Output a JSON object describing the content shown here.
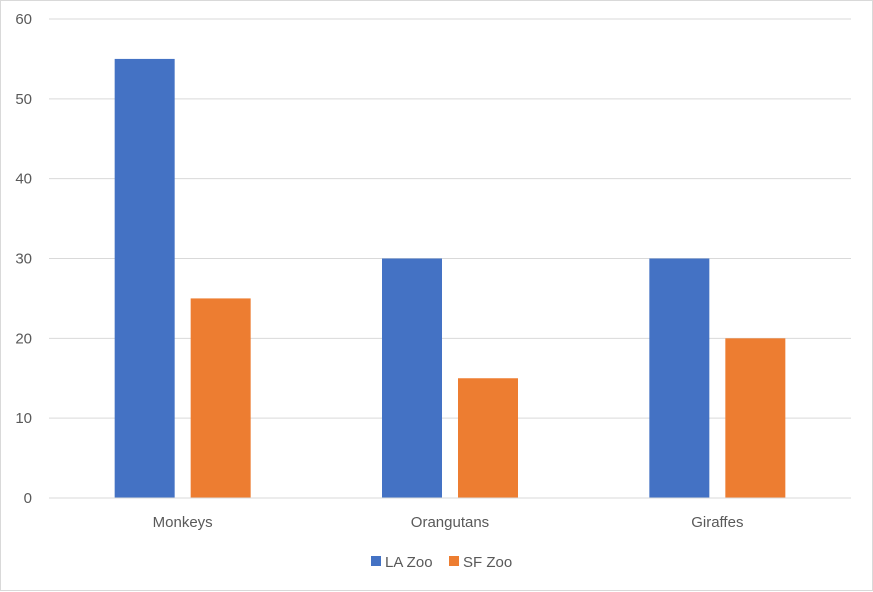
{
  "chart_data": {
    "type": "bar",
    "title": "",
    "xlabel": "",
    "ylabel": "",
    "categories": [
      "Monkeys",
      "Orangutans",
      "Giraffes"
    ],
    "series": [
      {
        "name": "LA Zoo",
        "color": "#4472c4",
        "values": [
          55,
          30,
          30
        ]
      },
      {
        "name": "SF Zoo",
        "color": "#ed7d31",
        "values": [
          25,
          15,
          20
        ]
      }
    ],
    "ylim": [
      0,
      60
    ],
    "yticks": [
      0,
      10,
      20,
      30,
      40,
      50,
      60
    ],
    "grid": true,
    "legend": "bottom"
  }
}
